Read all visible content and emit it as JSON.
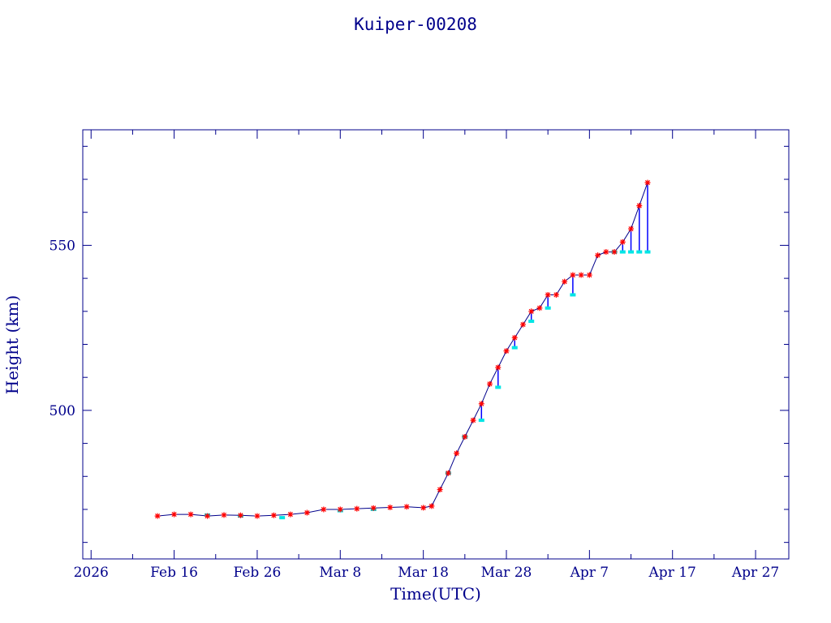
{
  "chart_data": {
    "type": "line",
    "title": "Kuiper-00208",
    "xlabel": "Time(UTC)",
    "ylabel": "Height (km)",
    "x_range": [
      "2026-02-05",
      "2026-05-01"
    ],
    "ylim": [
      455,
      585
    ],
    "y_ticks": [
      550,
      500
    ],
    "x_tick_labels": [
      {
        "date": "2026-02-06",
        "label": "2026"
      },
      {
        "date": "2026-02-16",
        "label": "Feb 16"
      },
      {
        "date": "2026-02-26",
        "label": "Feb 26"
      },
      {
        "date": "2026-03-08",
        "label": "Mar  8"
      },
      {
        "date": "2026-03-18",
        "label": "Mar 18"
      },
      {
        "date": "2026-03-28",
        "label": "Mar 28"
      },
      {
        "date": "2026-04-07",
        "label": "Apr  7"
      },
      {
        "date": "2026-04-17",
        "label": "Apr 17"
      },
      {
        "date": "2026-04-27",
        "label": "Apr 27"
      }
    ],
    "grid": false,
    "legend": "none",
    "colors": {
      "axes": "#00008b",
      "line": "#00008b",
      "marker_primary": "#ff0000",
      "marker_secondary": "#00e5e5",
      "drop_line": "#0000ff"
    },
    "series": [
      {
        "marker": "star",
        "x": [
          "2026-02-14",
          "2026-02-16",
          "2026-02-18",
          "2026-02-20",
          "2026-02-22",
          "2026-02-24",
          "2026-02-26",
          "2026-02-28",
          "2026-03-02",
          "2026-03-04",
          "2026-03-06",
          "2026-03-08",
          "2026-03-10",
          "2026-03-12",
          "2026-03-14",
          "2026-03-16",
          "2026-03-18",
          "2026-03-19",
          "2026-03-20",
          "2026-03-21",
          "2026-03-22",
          "2026-03-23",
          "2026-03-24",
          "2026-03-25",
          "2026-03-26",
          "2026-03-27",
          "2026-03-28",
          "2026-03-29",
          "2026-03-30",
          "2026-03-31",
          "2026-04-01",
          "2026-04-02",
          "2026-04-03",
          "2026-04-04",
          "2026-04-05",
          "2026-04-06",
          "2026-04-07",
          "2026-04-08",
          "2026-04-09",
          "2026-04-10",
          "2026-04-11",
          "2026-04-12",
          "2026-04-13",
          "2026-04-14"
        ],
        "y": [
          468,
          468.5,
          468.5,
          468,
          468.3,
          468.2,
          468,
          468.2,
          468.5,
          469,
          470,
          470,
          470.2,
          470.4,
          470.6,
          470.8,
          470.5,
          471,
          476,
          481,
          487,
          492,
          497,
          502,
          508,
          513,
          518,
          522,
          526,
          530,
          531,
          535,
          535,
          539,
          541,
          541,
          541,
          547,
          548,
          548,
          551,
          555,
          562,
          569
        ]
      },
      {
        "name": "",
        "marker": "dot",
        "x": [
          "2026-02-20",
          "2026-02-24",
          "2026-03-01",
          "2026-03-08",
          "2026-03-12",
          "2026-03-21",
          "2026-03-23",
          "2026-03-25",
          "2026-03-27",
          "2026-03-29",
          "2026-03-31",
          "2026-04-02",
          "2026-04-05",
          "2026-04-10",
          "2026-04-11",
          "2026-04-12",
          "2026-04-13",
          "2026-04-14"
        ],
        "y": [
          468.3,
          468,
          467.5,
          469.6,
          470,
          481,
          492,
          497,
          507,
          519,
          527,
          531,
          535,
          548,
          548,
          548,
          548,
          548
        ]
      }
    ]
  }
}
